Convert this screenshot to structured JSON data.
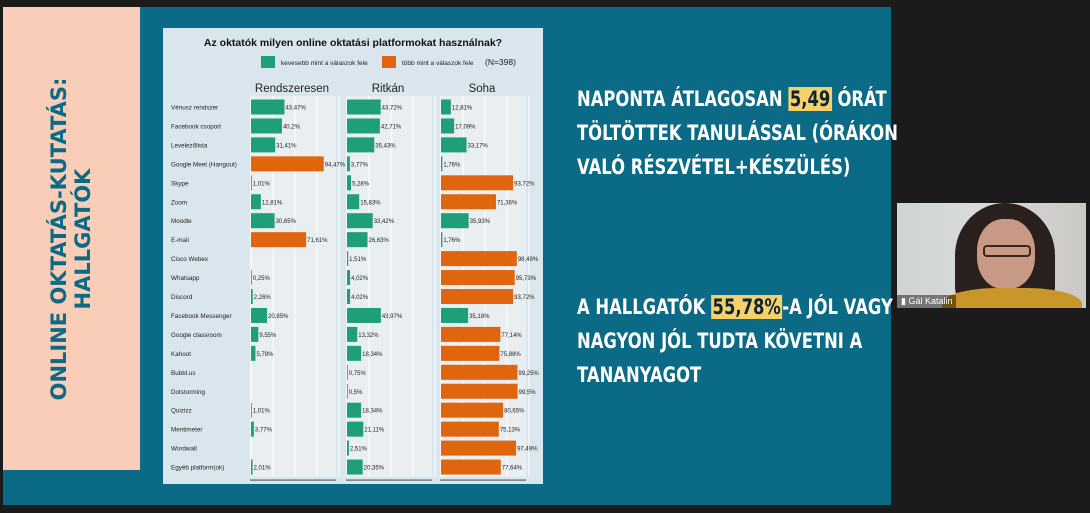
{
  "sidebar": {
    "title_line1": "ONLINE OKTATÁS-KUTATÁS:",
    "title_line2": "HALLGATÓK"
  },
  "right_text": {
    "p1_a": "NAPONTA ÁTLAGOSAN ",
    "p1_highlight": "5,49",
    "p1_b": " ÓRÁT",
    "p1_line2": "TÖLTÖTTEK TANULÁSSAL (ÓRÁKON",
    "p1_line3": "VALÓ RÉSZVÉTEL+KÉSZÜLÉS)",
    "p2_a": "A HALLGATÓK ",
    "p2_highlight": "55,78%",
    "p2_b": "-A JÓL VAGY",
    "p2_line2": "NAGYON JÓL TUDTA KÖVETNI A",
    "p2_line3": "TANANYAGOT"
  },
  "video": {
    "participant_name": "Gál Katalin"
  },
  "colors": {
    "green": "#1f9e7a",
    "orange": "#e0650f",
    "teal": "#0b6a85",
    "pink": "#f9cdb8",
    "highlight": "#f3d26b"
  },
  "chart_data": {
    "type": "bar",
    "title": "Az oktatók milyen online oktatási platformokat használnak?",
    "legend": [
      {
        "label": "kevesebb mint a válaszok fele",
        "color": "#1f9e7a"
      },
      {
        "label": "több mint a válaszok fele",
        "color": "#e0650f"
      }
    ],
    "n_label": "(N=398)",
    "legend_position": "top-right",
    "xlim": [
      0,
      100
    ],
    "categories": [
      "Vénusz rendszer",
      "Facebook csoport",
      "Levelezőlista",
      "Google Meet (Hangout)",
      "Skype",
      "Zoom",
      "Moodle",
      "E-mail",
      "Cisco Webex",
      "Whatsapp",
      "Discord",
      "Facebook Messenger",
      "Google classroom",
      "Kahoot",
      "Bubbl.us",
      "Dotstorming",
      "Quizizz",
      "Mentimeter",
      "Wordwall",
      "Egyéb platform(ok)"
    ],
    "series": [
      {
        "name": "Rendszeresen",
        "values": [
          43.47,
          40.2,
          31.41,
          94.47,
          1.01,
          12.81,
          30.65,
          71.61,
          0,
          0.25,
          2.26,
          20.85,
          9.55,
          5.78,
          0,
          0,
          1.01,
          3.77,
          0,
          2.01
        ],
        "labels": [
          "43,47%",
          "40,2%",
          "31,41%",
          "94,47%",
          "1,01%",
          "12,81%",
          "30,65%",
          "71,61%",
          "",
          "0,25%",
          "2,26%",
          "20,85%",
          "9,55%",
          "5,78%",
          "",
          "",
          "1,01%",
          "3,77%",
          "",
          "2,01%"
        ]
      },
      {
        "name": "Ritkán",
        "values": [
          43.72,
          42.71,
          35.43,
          3.77,
          5.28,
          15.83,
          33.42,
          26.63,
          1.51,
          4.02,
          4.02,
          43.97,
          13.32,
          18.34,
          0.75,
          0.5,
          18.34,
          21.11,
          2.51,
          20.35
        ],
        "labels": [
          "43,72%",
          "42,71%",
          "35,43%",
          "3,77%",
          "5,28%",
          "15,83%",
          "33,42%",
          "26,63%",
          "1,51%",
          "4,02%",
          "4,02%",
          "43,97%",
          "13,32%",
          "18,34%",
          "0,75%",
          "0,5%",
          "18,34%",
          "21,11%",
          "2,51%",
          "20,35%"
        ]
      },
      {
        "name": "Soha",
        "values": [
          12.81,
          17.09,
          33.17,
          1.76,
          93.72,
          71.36,
          35.93,
          1.76,
          98.49,
          95.73,
          93.72,
          35.18,
          77.14,
          75.88,
          99.25,
          99.5,
          80.65,
          75.13,
          97.49,
          77.64
        ],
        "labels": [
          "12,81%",
          "17,09%",
          "33,17%",
          "1,76%",
          "93,72%",
          "71,36%",
          "35,93%",
          "1,76%",
          "98,49%",
          "95,73%",
          "93,72%",
          "35,18%",
          "77,14%",
          "75,88%",
          "99,25%",
          "99,5%",
          "80,65%",
          "75,13%",
          "97,49%",
          "77,64%"
        ]
      }
    ]
  }
}
